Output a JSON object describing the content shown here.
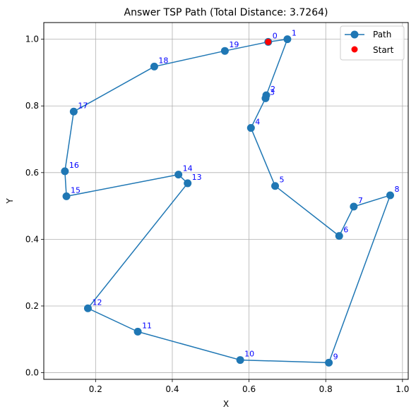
{
  "chart_data": {
    "type": "line",
    "title": "Answer TSP Path (Total Distance: 3.7264)",
    "xlabel": "X",
    "ylabel": "Y",
    "xlim": [
      0.065,
      1.015
    ],
    "ylim": [
      -0.02,
      1.05
    ],
    "xticks": [
      0.2,
      0.4,
      0.6,
      0.8,
      1.0
    ],
    "yticks": [
      0.0,
      0.2,
      0.4,
      0.6,
      0.8,
      1.0
    ],
    "xtick_labels": [
      "0.2",
      "0.4",
      "0.6",
      "0.8",
      "1.0"
    ],
    "ytick_labels": [
      "0.0",
      "0.2",
      "0.4",
      "0.6",
      "0.8",
      "1.0"
    ],
    "grid": true,
    "legend_position": "top-right",
    "colors": {
      "path": "#1f77b4",
      "start": "#ff0000",
      "point_label": "#0000ff"
    },
    "points": [
      {
        "id": "0",
        "x": 0.65,
        "y": 0.992
      },
      {
        "id": "1",
        "x": 0.7,
        "y": 1.0
      },
      {
        "id": "2",
        "x": 0.645,
        "y": 0.832
      },
      {
        "id": "3",
        "x": 0.643,
        "y": 0.823
      },
      {
        "id": "4",
        "x": 0.605,
        "y": 0.734
      },
      {
        "id": "5",
        "x": 0.668,
        "y": 0.56
      },
      {
        "id": "6",
        "x": 0.835,
        "y": 0.41
      },
      {
        "id": "7",
        "x": 0.873,
        "y": 0.498
      },
      {
        "id": "8",
        "x": 0.968,
        "y": 0.532
      },
      {
        "id": "9",
        "x": 0.808,
        "y": 0.03
      },
      {
        "id": "10",
        "x": 0.577,
        "y": 0.038
      },
      {
        "id": "11",
        "x": 0.31,
        "y": 0.123
      },
      {
        "id": "12",
        "x": 0.18,
        "y": 0.193
      },
      {
        "id": "13",
        "x": 0.44,
        "y": 0.568
      },
      {
        "id": "14",
        "x": 0.416,
        "y": 0.594
      },
      {
        "id": "15",
        "x": 0.124,
        "y": 0.529
      },
      {
        "id": "16",
        "x": 0.12,
        "y": 0.604
      },
      {
        "id": "17",
        "x": 0.143,
        "y": 0.783
      },
      {
        "id": "18",
        "x": 0.353,
        "y": 0.918
      },
      {
        "id": "19",
        "x": 0.537,
        "y": 0.965
      }
    ],
    "path_order": [
      "0",
      "1",
      "2",
      "3",
      "4",
      "5",
      "6",
      "7",
      "8",
      "9",
      "10",
      "11",
      "12",
      "13",
      "14",
      "15",
      "16",
      "17",
      "18",
      "19",
      "0"
    ],
    "start": {
      "x": 0.65,
      "y": 0.992
    },
    "legend": [
      {
        "label": "Path",
        "kind": "line-marker"
      },
      {
        "label": "Start",
        "kind": "marker"
      }
    ]
  }
}
